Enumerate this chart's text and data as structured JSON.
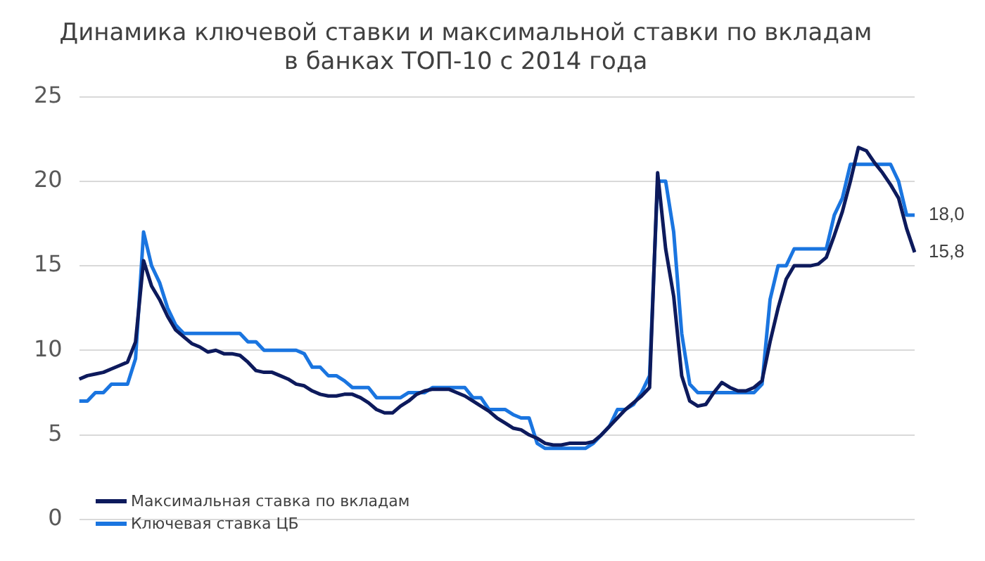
{
  "chart_data": {
    "type": "line",
    "title": "Динамика ключевой ставки и максимальной ставки по вкладам\nв банках ТОП-10 с 2014 года",
    "categories": [
      null,
      null,
      null,
      null,
      null,
      null,
      null,
      null,
      null,
      null,
      null,
      null,
      null,
      null,
      null,
      null,
      null,
      null,
      null,
      null,
      null,
      null,
      null,
      null,
      null,
      null,
      null,
      null,
      null,
      null,
      null,
      null,
      null,
      null,
      null,
      null,
      null,
      null,
      null,
      null,
      null,
      null,
      null,
      null,
      null,
      null,
      null,
      null,
      null,
      null,
      null,
      null,
      null,
      null,
      null,
      null,
      null,
      null,
      null,
      null,
      null,
      null,
      null,
      null,
      null,
      null,
      null,
      null,
      null,
      null,
      null,
      null,
      null,
      null,
      null,
      null,
      null,
      null,
      null,
      null,
      null,
      null,
      null,
      null,
      null,
      null,
      null,
      null,
      null,
      null,
      null,
      null,
      null,
      null,
      null,
      null,
      null,
      null,
      null,
      null,
      null,
      null,
      null,
      null,
      null
    ],
    "series": [
      {
        "name": "Максимальная ставка по вкладам",
        "color": "#0d1a5c",
        "values": [
          8.3,
          8.5,
          8.6,
          8.7,
          8.9,
          9.1,
          9.3,
          10.5,
          15.3,
          13.8,
          13,
          12,
          11.2,
          10.8,
          10.4,
          10.2,
          9.9,
          10,
          9.8,
          9.8,
          9.7,
          9.3,
          8.8,
          8.7,
          8.7,
          8.5,
          8.3,
          8.0,
          7.9,
          7.6,
          7.4,
          7.3,
          7.3,
          7.4,
          7.4,
          7.2,
          6.9,
          6.5,
          6.3,
          6.3,
          6.7,
          7.0,
          7.4,
          7.6,
          7.7,
          7.7,
          7.7,
          7.5,
          7.3,
          7.0,
          6.7,
          6.4,
          6.0,
          5.7,
          5.4,
          5.3,
          5.0,
          4.8,
          4.5,
          4.4,
          4.4,
          4.5,
          4.5,
          4.5,
          4.6,
          5.0,
          5.5,
          6.0,
          6.5,
          6.9,
          7.3,
          7.8,
          20.5,
          16,
          13.2,
          8.5,
          7.0,
          6.7,
          6.8,
          7.5,
          8.1,
          7.8,
          7.6,
          7.6,
          7.8,
          8.2,
          10.5,
          12.5,
          14.2,
          15,
          15,
          15,
          15.1,
          15.5,
          16.8,
          18.2,
          20,
          22,
          21.8,
          21.1,
          20.5,
          19.8,
          19,
          17.2,
          15.8
        ]
      },
      {
        "name": "Ключевая ставка ЦБ",
        "color": "#1a75e0",
        "values": [
          7,
          7,
          7.5,
          7.5,
          8,
          8,
          8,
          9.5,
          17,
          15,
          14,
          12.5,
          11.5,
          11,
          11,
          11,
          11,
          11,
          11,
          11,
          11,
          10.5,
          10.5,
          10,
          10,
          10,
          10,
          10,
          9.8,
          9,
          9,
          8.5,
          8.5,
          8.2,
          7.8,
          7.8,
          7.8,
          7.2,
          7.2,
          7.2,
          7.2,
          7.5,
          7.5,
          7.5,
          7.8,
          7.8,
          7.8,
          7.8,
          7.8,
          7.2,
          7.2,
          6.5,
          6.5,
          6.5,
          6.2,
          6,
          6,
          4.5,
          4.2,
          4.2,
          4.2,
          4.2,
          4.2,
          4.2,
          4.5,
          5,
          5.5,
          6.5,
          6.5,
          6.8,
          7.5,
          8.5,
          20,
          20,
          17,
          11,
          8,
          7.5,
          7.5,
          7.5,
          7.5,
          7.5,
          7.5,
          7.5,
          7.5,
          8,
          13,
          15,
          15,
          16,
          16,
          16,
          16,
          16,
          18,
          19,
          21,
          21,
          21,
          21,
          21,
          21,
          20,
          18,
          18
        ]
      }
    ],
    "ylim": [
      0,
      25
    ],
    "yticks": [
      0,
      5,
      10,
      15,
      20,
      25
    ],
    "grid": "y",
    "legend": "bottom left",
    "annotations": [
      "18,0",
      "15,8"
    ]
  }
}
